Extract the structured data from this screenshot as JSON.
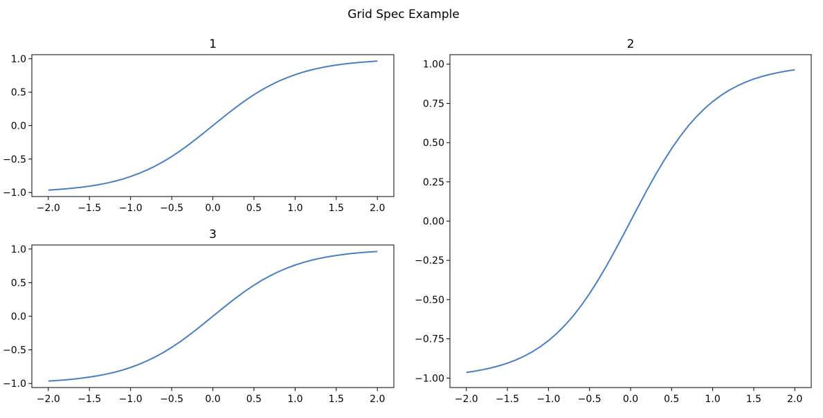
{
  "chart_data": {
    "suptitle": "Grid Spec Example",
    "type": "line",
    "x": [
      -2.0,
      -1.9,
      -1.8,
      -1.7,
      -1.6,
      -1.5,
      -1.4,
      -1.3,
      -1.2,
      -1.1,
      -1.0,
      -0.9,
      -0.8,
      -0.7,
      -0.6,
      -0.5,
      -0.4,
      -0.3,
      -0.2,
      -0.1,
      0.0,
      0.1,
      0.2,
      0.3,
      0.4,
      0.5,
      0.6,
      0.7,
      0.8,
      0.9,
      1.0,
      1.1,
      1.2,
      1.3,
      1.4,
      1.5,
      1.6,
      1.7,
      1.8,
      1.9,
      2.0
    ],
    "y": [
      -0.964,
      -0.9562,
      -0.9468,
      -0.9354,
      -0.9217,
      -0.9051,
      -0.8854,
      -0.8617,
      -0.8337,
      -0.8005,
      -0.7616,
      -0.7163,
      -0.664,
      -0.6044,
      -0.537,
      -0.4621,
      -0.3799,
      -0.2913,
      -0.1974,
      -0.0997,
      0.0,
      0.0997,
      0.1974,
      0.2913,
      0.3799,
      0.4621,
      0.537,
      0.6044,
      0.664,
      0.7163,
      0.7616,
      0.8005,
      0.8337,
      0.8617,
      0.8854,
      0.9051,
      0.9217,
      0.9354,
      0.9468,
      0.9562,
      0.964
    ],
    "color": "#4a7ebb",
    "xlim": [
      -2.2,
      2.2
    ],
    "ylim": [
      -1.0604,
      1.0604
    ],
    "subplots": [
      {
        "title": "1",
        "xticks": [
          "−2.0",
          "−1.5",
          "−1.0",
          "−0.5",
          "0.0",
          "0.5",
          "1.0",
          "1.5",
          "2.0"
        ],
        "xtick_values": [
          -2,
          -1.5,
          -1,
          -0.5,
          0,
          0.5,
          1,
          1.5,
          2
        ],
        "yticks": [
          "−1.0",
          "−0.5",
          "0.0",
          "0.5",
          "1.0"
        ],
        "ytick_values": [
          -1,
          -0.5,
          0,
          0.5,
          1
        ]
      },
      {
        "title": "2",
        "xticks": [
          "−2.0",
          "−1.5",
          "−1.0",
          "−0.5",
          "0.0",
          "0.5",
          "1.0",
          "1.5",
          "2.0"
        ],
        "xtick_values": [
          -2,
          -1.5,
          -1,
          -0.5,
          0,
          0.5,
          1,
          1.5,
          2
        ],
        "yticks": [
          "−1.00",
          "−0.75",
          "−0.50",
          "−0.25",
          "0.00",
          "0.25",
          "0.50",
          "0.75",
          "1.00"
        ],
        "ytick_values": [
          -1,
          -0.75,
          -0.5,
          -0.25,
          0,
          0.25,
          0.5,
          0.75,
          1
        ]
      },
      {
        "title": "3",
        "xticks": [
          "−2.0",
          "−1.5",
          "−1.0",
          "−0.5",
          "0.0",
          "0.5",
          "1.0",
          "1.5",
          "2.0"
        ],
        "xtick_values": [
          -2,
          -1.5,
          -1,
          -0.5,
          0,
          0.5,
          1,
          1.5,
          2
        ],
        "yticks": [
          "−1.0",
          "−0.5",
          "0.0",
          "0.5",
          "1.0"
        ],
        "ytick_values": [
          -1,
          -0.5,
          0,
          0.5,
          1
        ]
      }
    ]
  }
}
